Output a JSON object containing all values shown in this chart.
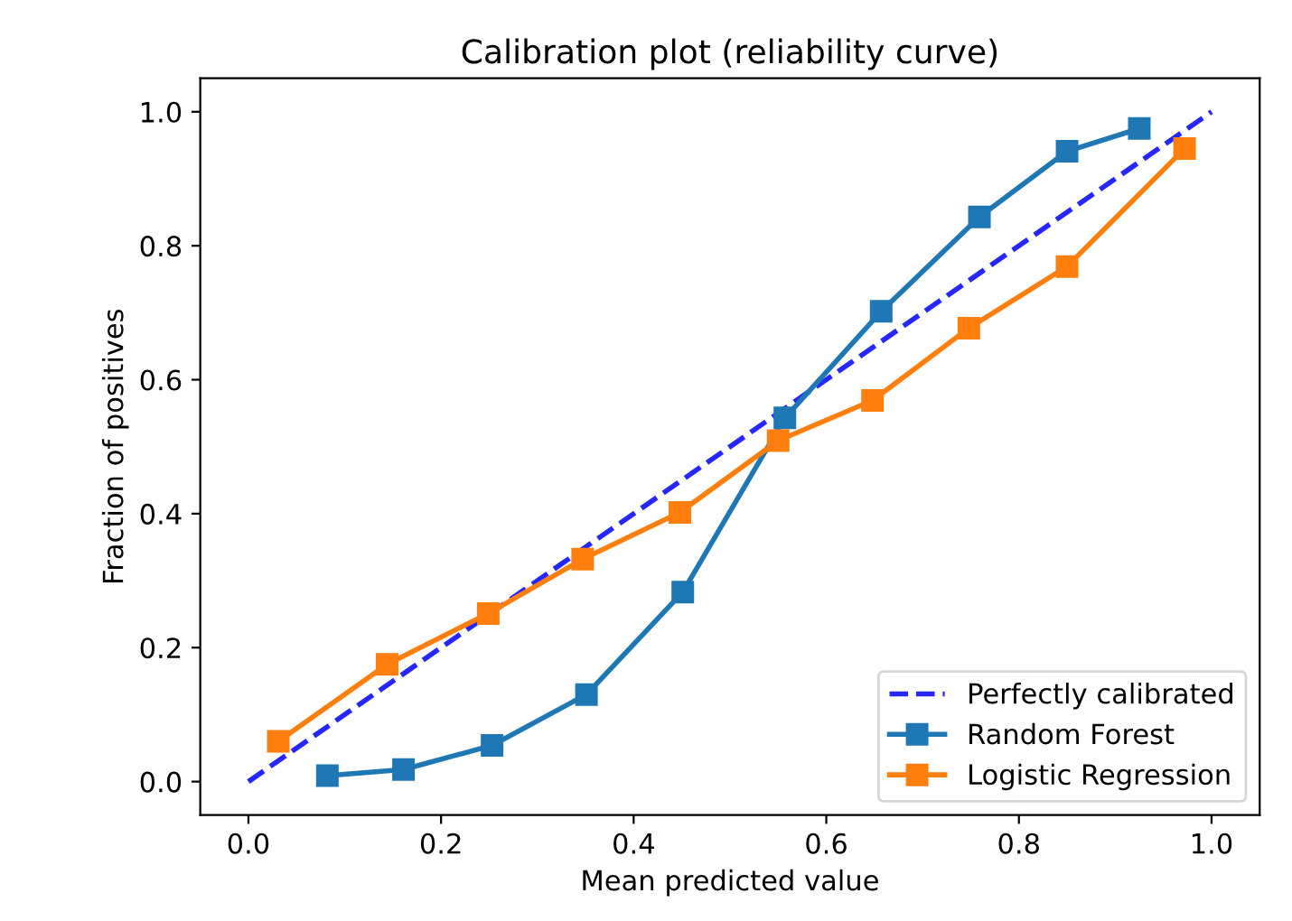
{
  "chart_data": {
    "type": "line",
    "title": "Calibration plot (reliability curve)",
    "xlabel": "Mean predicted value",
    "ylabel": "Fraction of positives",
    "series": [
      {
        "name": "Perfectly calibrated",
        "color": "#0000ff",
        "x": [
          0,
          1
        ],
        "values": [
          0,
          1
        ],
        "line_style": "dashed",
        "marker": "none"
      },
      {
        "name": "Random Forest",
        "color": "#1f77b4",
        "x": [
          0.082,
          0.161,
          0.253,
          0.351,
          0.451,
          0.557,
          0.657,
          0.759,
          0.85,
          0.925
        ],
        "values": [
          0.009,
          0.018,
          0.054,
          0.13,
          0.283,
          0.543,
          0.702,
          0.843,
          0.941,
          0.975
        ],
        "line_style": "solid",
        "marker": "square"
      },
      {
        "name": "Logistic Regression",
        "color": "#ff7f0e",
        "x": [
          0.031,
          0.144,
          0.249,
          0.347,
          0.448,
          0.55,
          0.648,
          0.748,
          0.85,
          0.972
        ],
        "values": [
          0.06,
          0.175,
          0.251,
          0.332,
          0.402,
          0.509,
          0.569,
          0.677,
          0.769,
          0.945
        ],
        "line_style": "solid",
        "marker": "square"
      }
    ],
    "xlim": [
      -0.05,
      1.05
    ],
    "ylim": [
      -0.05,
      1.05
    ],
    "xticks": [
      {
        "value": 0,
        "label": "0.0"
      },
      {
        "value": 0.2,
        "label": "0.2"
      },
      {
        "value": 0.4,
        "label": "0.4"
      },
      {
        "value": 0.6,
        "label": "0.6"
      },
      {
        "value": 0.8,
        "label": "0.8"
      },
      {
        "value": 1,
        "label": "1.0"
      }
    ],
    "yticks": [
      {
        "value": 0,
        "label": "0.0"
      },
      {
        "value": 0.2,
        "label": "0.2"
      },
      {
        "value": 0.4,
        "label": "0.4"
      },
      {
        "value": 0.6,
        "label": "0.6"
      },
      {
        "value": 0.8,
        "label": "0.8"
      },
      {
        "value": 1,
        "label": "1.0"
      }
    ],
    "grid": false,
    "legend": "lower right"
  }
}
